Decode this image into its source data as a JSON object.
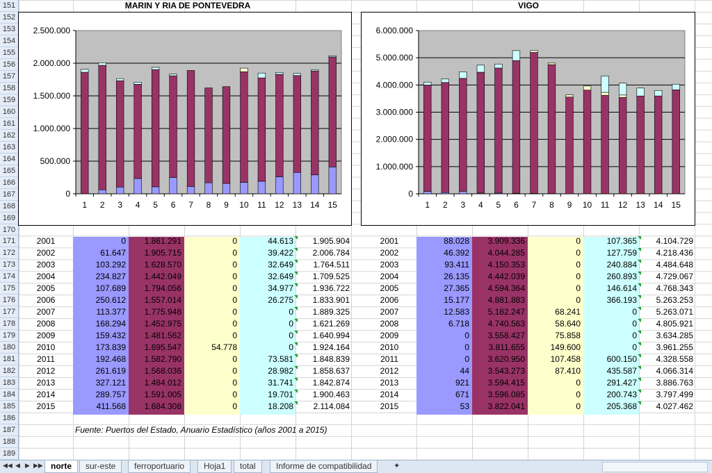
{
  "row_numbers": [
    "151",
    "152",
    "153",
    "154",
    "155",
    "156",
    "157",
    "158",
    "159",
    "160",
    "161",
    "162",
    "163",
    "164",
    "165",
    "166",
    "167",
    "168",
    "169",
    "170",
    "171",
    "172",
    "173",
    "174",
    "175",
    "176",
    "177",
    "178",
    "179",
    "180",
    "181",
    "182",
    "183",
    "184",
    "185",
    "186",
    "187",
    "188",
    "189"
  ],
  "colors": {
    "c1": "#9999ff",
    "c2": "#993366",
    "c3": "#ffffcc",
    "c4": "#ccffff",
    "plot_bg": "#c0c0c0"
  },
  "chart_data": [
    {
      "type": "bar",
      "title": "MARIN Y RIA DE PONTEVEDRA",
      "categories": [
        "1",
        "2",
        "3",
        "4",
        "5",
        "6",
        "7",
        "8",
        "9",
        "10",
        "11",
        "12",
        "13",
        "14",
        "15"
      ],
      "y_ticks": [
        "2.500.000",
        "2.000.000",
        "1.500.000",
        "1.000.000",
        "500.000",
        "0"
      ],
      "ylim": [
        0,
        2500000
      ],
      "stacked": true,
      "series": [
        {
          "values": [
            0,
            61647,
            103292,
            234827,
            107689,
            250612,
            113377,
            168294,
            159432,
            173839,
            192468,
            261619,
            327121,
            289757,
            411568
          ]
        },
        {
          "values": [
            1861291,
            1905715,
            1628570,
            1442049,
            1794056,
            1557014,
            1775948,
            1452975,
            1481562,
            1695547,
            1582790,
            1568036,
            1484012,
            1591005,
            1684308
          ]
        },
        {
          "values": [
            0,
            0,
            0,
            0,
            0,
            0,
            0,
            0,
            0,
            54778,
            0,
            0,
            0,
            0,
            0
          ]
        },
        {
          "values": [
            44613,
            39422,
            32649,
            32649,
            34977,
            26275,
            0,
            0,
            0,
            0,
            73581,
            28982,
            31741,
            19701,
            18208
          ]
        }
      ]
    },
    {
      "type": "bar",
      "title": "VIGO",
      "categories": [
        "1",
        "2",
        "3",
        "4",
        "5",
        "6",
        "7",
        "8",
        "9",
        "10",
        "11",
        "12",
        "13",
        "14",
        "15"
      ],
      "y_ticks": [
        "6.000.000",
        "5.000.000",
        "4.000.000",
        "3.000.000",
        "2.000.000",
        "1.000.000",
        "0"
      ],
      "ylim": [
        0,
        6000000
      ],
      "stacked": true,
      "series": [
        {
          "values": [
            88028,
            46392,
            93411,
            26135,
            27365,
            15177,
            12583,
            6718,
            0,
            0,
            0,
            44,
            921,
            671,
            53
          ]
        },
        {
          "values": [
            3909336,
            4044285,
            4150353,
            4442039,
            4594364,
            4881883,
            5182247,
            4740563,
            3558427,
            3811655,
            3620950,
            3543273,
            3594415,
            3596085,
            3822041
          ]
        },
        {
          "values": [
            0,
            0,
            0,
            0,
            0,
            0,
            68241,
            58640,
            75858,
            149600,
            107458,
            87410,
            0,
            0,
            0
          ]
        },
        {
          "values": [
            107365,
            127759,
            240884,
            260893,
            146614,
            366193,
            0,
            0,
            0,
            0,
            600150,
            435587,
            291427,
            200743,
            205368
          ]
        }
      ]
    }
  ],
  "table_left": {
    "rows": [
      [
        "2001",
        "0",
        "1.861.291",
        "0",
        "44.613",
        "1.905.904"
      ],
      [
        "2002",
        "61.647",
        "1.905.715",
        "0",
        "39.422",
        "2.006.784"
      ],
      [
        "2003",
        "103.292",
        "1.628.570",
        "0",
        "32.649",
        "1.764.511"
      ],
      [
        "2004",
        "234.827",
        "1.442.049",
        "0",
        "32.649",
        "1.709.525"
      ],
      [
        "2005",
        "107.689",
        "1.794.056",
        "0",
        "34.977",
        "1.936.722"
      ],
      [
        "2006",
        "250.612",
        "1.557.014",
        "0",
        "26.275",
        "1.833.901"
      ],
      [
        "2007",
        "113.377",
        "1.775.948",
        "0",
        "0",
        "1.889.325"
      ],
      [
        "2008",
        "168.294",
        "1.452.975",
        "0",
        "0",
        "1.621.269"
      ],
      [
        "2009",
        "159.432",
        "1.481.562",
        "0",
        "0",
        "1.640.994"
      ],
      [
        "2010",
        "173.839",
        "1.695.547",
        "54.778",
        "0",
        "1.924.164"
      ],
      [
        "2011",
        "192.468",
        "1.582.790",
        "0",
        "73.581",
        "1.848.839"
      ],
      [
        "2012",
        "261.619",
        "1.568.036",
        "0",
        "28.982",
        "1.858.637"
      ],
      [
        "2013",
        "327.121",
        "1.484.012",
        "0",
        "31.741",
        "1.842.874"
      ],
      [
        "2014",
        "289.757",
        "1.591.005",
        "0",
        "19.701",
        "1.900.463"
      ],
      [
        "2015",
        "411.568",
        "1.684.308",
        "0",
        "18.208",
        "2.114.084"
      ]
    ]
  },
  "table_right": {
    "rows": [
      [
        "2001",
        "88.028",
        "3.909.336",
        "0",
        "107.365",
        "4.104.729"
      ],
      [
        "2002",
        "46.392",
        "4.044.285",
        "0",
        "127.759",
        "4.218.436"
      ],
      [
        "2003",
        "93.411",
        "4.150.353",
        "0",
        "240.884",
        "4.484.648"
      ],
      [
        "2004",
        "26.135",
        "4.442.039",
        "0",
        "260.893",
        "4.729.067"
      ],
      [
        "2005",
        "27.365",
        "4.594.364",
        "0",
        "146.614",
        "4.768.343"
      ],
      [
        "2006",
        "15.177",
        "4.881.883",
        "0",
        "366.193",
        "5.263.253"
      ],
      [
        "2007",
        "12.583",
        "5.182.247",
        "68.241",
        "0",
        "5.263.071"
      ],
      [
        "2008",
        "6.718",
        "4.740.563",
        "58.640",
        "0",
        "4.805.921"
      ],
      [
        "2009",
        "0",
        "3.558.427",
        "75.858",
        "0",
        "3.634.285"
      ],
      [
        "2010",
        "0",
        "3.811.655",
        "149.600",
        "0",
        "3.961.255"
      ],
      [
        "2011",
        "0",
        "3.620.950",
        "107.458",
        "600.150",
        "4.328.558"
      ],
      [
        "2012",
        "44",
        "3.543.273",
        "87.410",
        "435.587",
        "4.066.314"
      ],
      [
        "2013",
        "921",
        "3.594.415",
        "0",
        "291.427",
        "3.886.763"
      ],
      [
        "2014",
        "671",
        "3.596.085",
        "0",
        "200.743",
        "3.797.499"
      ],
      [
        "2015",
        "53",
        "3.822.041",
        "0",
        "205.368",
        "4.027.462"
      ]
    ]
  },
  "source_note": "Fuente: Puertos del Estado, Anuario Estadístico (años 2001 a 2015)",
  "tabs": [
    {
      "label": "norte",
      "active": true
    },
    {
      "label": "sur-este",
      "active": false
    },
    {
      "label": "ferroportuario",
      "active": false
    },
    {
      "label": "Hoja1",
      "active": false
    },
    {
      "label": "total",
      "active": false
    },
    {
      "label": "Informe de compatibilidad",
      "active": false
    }
  ]
}
